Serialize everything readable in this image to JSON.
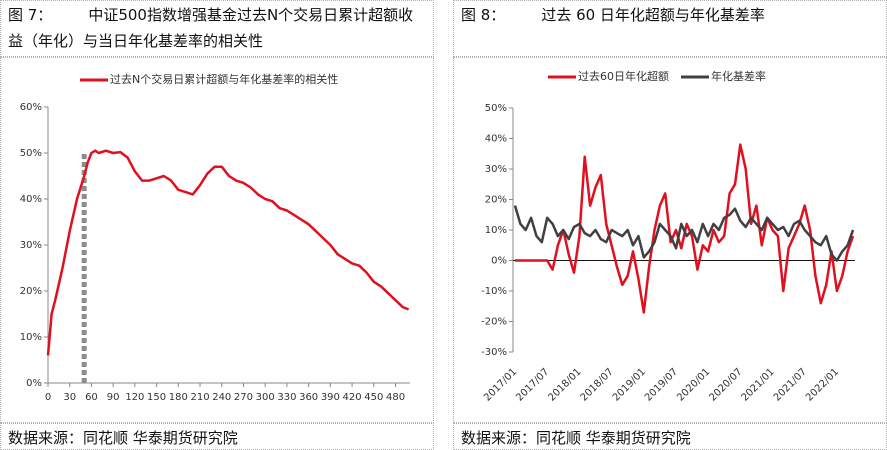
{
  "chart_data": [
    {
      "type": "line",
      "figure": "图 7：",
      "title": "中证500指数增强基金过去N个交易日累计超额收益（年化）与当日年化基差率的相关性",
      "source": "数据来源：同花顺 华泰期货研究院",
      "x": [
        0,
        5,
        10,
        20,
        30,
        40,
        50,
        55,
        60,
        65,
        70,
        80,
        90,
        100,
        110,
        120,
        130,
        140,
        150,
        160,
        170,
        180,
        190,
        200,
        210,
        220,
        230,
        240,
        250,
        260,
        270,
        280,
        290,
        300,
        310,
        320,
        330,
        340,
        350,
        360,
        370,
        380,
        390,
        400,
        410,
        420,
        430,
        440,
        450,
        460,
        470,
        480,
        490,
        498
      ],
      "series": [
        {
          "name": "过去N个交易日累计超额与年化基差率的相关性",
          "color": "#e0101e",
          "values": [
            6,
            15,
            18,
            25,
            33,
            40,
            45,
            48,
            50,
            50.5,
            50,
            50.5,
            50,
            50.2,
            49,
            46,
            44,
            44,
            44.5,
            45,
            44,
            42,
            41.5,
            41,
            43,
            45.5,
            47,
            47,
            45,
            44,
            43.5,
            42.5,
            41,
            40,
            39.5,
            38,
            37.5,
            36.5,
            35.5,
            34.5,
            33,
            31.5,
            30,
            28,
            27,
            26,
            25.5,
            24,
            22,
            21,
            19.5,
            18,
            16.5,
            16
          ]
        }
      ],
      "reference_line": {
        "x": 50,
        "y": 50,
        "color": "#8c8c8c"
      },
      "xlim": [
        0,
        500
      ],
      "xticks": [
        0,
        30,
        60,
        90,
        120,
        150,
        180,
        210,
        240,
        270,
        300,
        330,
        360,
        390,
        420,
        450,
        480
      ],
      "ylim": [
        0,
        60
      ],
      "yticks": [
        {
          "value": 0,
          "label": "0%"
        },
        {
          "value": 10,
          "label": "10%"
        },
        {
          "value": 20,
          "label": "20%"
        },
        {
          "value": 30,
          "label": "30%"
        },
        {
          "value": 40,
          "label": "40%"
        },
        {
          "value": 50,
          "label": "50%"
        },
        {
          "value": 60,
          "label": "60%"
        }
      ]
    },
    {
      "type": "line",
      "figure": "图 8：",
      "title": "过去 60 日年化超额与年化基差率",
      "source": "数据来源：同花顺 华泰期货研究院",
      "categories": [
        "2017/01",
        null,
        null,
        null,
        null,
        null,
        "2017/07",
        null,
        null,
        null,
        null,
        null,
        "2018/01",
        null,
        null,
        null,
        null,
        null,
        "2018/07",
        null,
        null,
        null,
        null,
        null,
        "2019/01",
        null,
        null,
        null,
        null,
        null,
        "2019/07",
        null,
        null,
        null,
        null,
        null,
        "2020/01",
        null,
        null,
        null,
        null,
        null,
        "2020/07",
        null,
        null,
        null,
        null,
        null,
        "2021/01",
        null,
        null,
        null,
        null,
        null,
        "2021/07",
        null,
        null,
        null,
        null,
        null,
        "2022/01",
        null,
        null,
        null
      ],
      "series": [
        {
          "name": "过去60日年化超额",
          "color": "#e0101e",
          "values": [
            0,
            0,
            0,
            0,
            0,
            0,
            0,
            -3,
            5,
            10,
            2,
            -4,
            8,
            34,
            18,
            24,
            28,
            12,
            5,
            -2,
            -8,
            -5,
            3,
            -6,
            -17,
            -2,
            10,
            18,
            22,
            6,
            10,
            4,
            12,
            8,
            -3,
            5,
            3,
            10,
            6,
            8,
            22,
            25,
            38,
            30,
            12,
            18,
            5,
            14,
            10,
            8,
            -10,
            4,
            8,
            12,
            18,
            10,
            -5,
            -14,
            -8,
            3,
            -10,
            -5,
            3,
            8
          ]
        },
        {
          "name": "年化基差率",
          "color": "#404040",
          "values": [
            18,
            12,
            10,
            14,
            8,
            6,
            14,
            12,
            8,
            10,
            7,
            11,
            12,
            9,
            8,
            10,
            7,
            6,
            10,
            9,
            8,
            10,
            5,
            8,
            1,
            3,
            6,
            12,
            10,
            8,
            4,
            12,
            8,
            10,
            6,
            12,
            8,
            12,
            10,
            14,
            15,
            17,
            13,
            11,
            14,
            12,
            10,
            14,
            12,
            10,
            11,
            8,
            12,
            13,
            10,
            8,
            6,
            5,
            8,
            2,
            0,
            3,
            5,
            10
          ]
        }
      ],
      "ylim": [
        -30,
        50
      ],
      "yticks": [
        {
          "value": -30,
          "label": "-30%"
        },
        {
          "value": -20,
          "label": "-20%"
        },
        {
          "value": -10,
          "label": "-10%"
        },
        {
          "value": 0,
          "label": "0%"
        },
        {
          "value": 10,
          "label": "10%"
        },
        {
          "value": 20,
          "label": "20%"
        },
        {
          "value": 30,
          "label": "30%"
        },
        {
          "value": 40,
          "label": "40%"
        },
        {
          "value": 50,
          "label": "50%"
        }
      ]
    }
  ]
}
